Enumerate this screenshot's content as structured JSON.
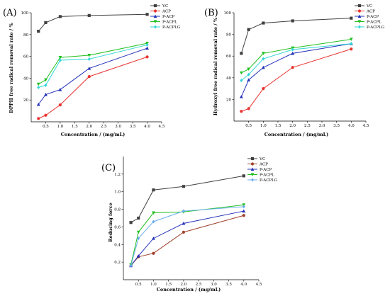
{
  "chart_data": [
    {
      "type": "line",
      "panel_label": "(A)",
      "xlabel": "Concentration / (mg/mL)",
      "ylabel": "DPPH free radical removal rate / %",
      "xlim": [
        0,
        4.5
      ],
      "ylim": [
        0,
        100
      ],
      "xticks": [
        0.5,
        1.0,
        1.5,
        2.0,
        2.5,
        3.0,
        3.5,
        4.0,
        4.5
      ],
      "yticks": [
        20,
        40,
        60,
        80,
        100
      ],
      "legend_position": "top-right",
      "x": [
        0.25,
        0.5,
        1.0,
        2.0,
        4.0
      ],
      "series": [
        {
          "name": "VC",
          "color": "#404040",
          "marker": "square",
          "values": [
            83,
            91,
            96.5,
            97.5,
            98.5
          ]
        },
        {
          "name": "ACP",
          "color": "#e8342f",
          "marker": "circle",
          "values": [
            3,
            6,
            15.5,
            41.5,
            59.5
          ]
        },
        {
          "name": "P-ACP",
          "color": "#2330b8",
          "marker": "triangle",
          "values": [
            16,
            25,
            29.5,
            49,
            67.5
          ]
        },
        {
          "name": "P-ACPL",
          "color": "#22c020",
          "marker": "triangle-down",
          "values": [
            34.5,
            38.5,
            59,
            61,
            72
          ]
        },
        {
          "name": "P-ACPLG",
          "color": "#33d6d6",
          "marker": "diamond",
          "values": [
            31.5,
            33.5,
            56.5,
            57.5,
            70.5
          ]
        }
      ]
    },
    {
      "type": "line",
      "panel_label": "(B)",
      "xlabel": "Concentration / (mg/mL)",
      "ylabel": "Hydroxyl free radical removal rate / %",
      "xlim": [
        0,
        4.5
      ],
      "ylim": [
        0,
        100
      ],
      "xticks": [
        0.5,
        1.0,
        1.5,
        2.0,
        2.5,
        3.0,
        3.5,
        4.0,
        4.5
      ],
      "yticks": [
        20,
        40,
        60,
        80,
        100
      ],
      "legend_position": "top-right",
      "x": [
        0.25,
        0.5,
        1.0,
        2.0,
        4.0
      ],
      "series": [
        {
          "name": "VC",
          "color": "#404040",
          "marker": "square",
          "values": [
            62.5,
            84.5,
            90.5,
            92.5,
            95
          ]
        },
        {
          "name": "ACP",
          "color": "#e8342f",
          "marker": "circle",
          "values": [
            9,
            11.5,
            30,
            49.5,
            66.5
          ]
        },
        {
          "name": "P-ACP",
          "color": "#2330b8",
          "marker": "triangle",
          "values": [
            22.5,
            38,
            49.5,
            62.5,
            71.5
          ]
        },
        {
          "name": "P-ACPL",
          "color": "#22c020",
          "marker": "triangle-down",
          "values": [
            44.5,
            48,
            62.5,
            67.5,
            75.5
          ]
        },
        {
          "name": "P-ACPLG",
          "color": "#33d6d6",
          "marker": "diamond",
          "values": [
            37.5,
            43,
            57.5,
            66,
            71.5
          ]
        }
      ]
    },
    {
      "type": "line",
      "panel_label": "(C)",
      "xlabel": "Concentration / (mg/mL)",
      "ylabel": "Reducing force",
      "xlim": [
        0,
        4.5
      ],
      "ylim": [
        0,
        1.4
      ],
      "xticks": [
        0.5,
        1.0,
        1.5,
        2.0,
        2.5,
        3.0,
        3.5,
        4.0,
        4.5
      ],
      "yticks": [
        0.2,
        0.4,
        0.6,
        0.8,
        1.0,
        1.2
      ],
      "legend_position": "top-right",
      "x": [
        0.25,
        0.5,
        1.0,
        2.0,
        4.0
      ],
      "series": [
        {
          "name": "VC",
          "color": "#404040",
          "marker": "square",
          "values": [
            0.65,
            0.7,
            1.02,
            1.06,
            1.18
          ]
        },
        {
          "name": "ACP",
          "color": "#a0402a",
          "marker": "circle",
          "values": [
            0.16,
            0.26,
            0.3,
            0.54,
            0.73
          ]
        },
        {
          "name": "P-ACP",
          "color": "#2330b8",
          "marker": "triangle",
          "values": [
            0.16,
            0.27,
            0.47,
            0.64,
            0.78
          ]
        },
        {
          "name": "P-ACPL",
          "color": "#22c020",
          "marker": "triangle-down",
          "values": [
            0.17,
            0.54,
            0.76,
            0.77,
            0.85
          ]
        },
        {
          "name": "P-ACPLG",
          "color": "#6aaef0",
          "marker": "diamond",
          "values": [
            0.16,
            0.47,
            0.66,
            0.78,
            0.83
          ]
        }
      ]
    }
  ]
}
